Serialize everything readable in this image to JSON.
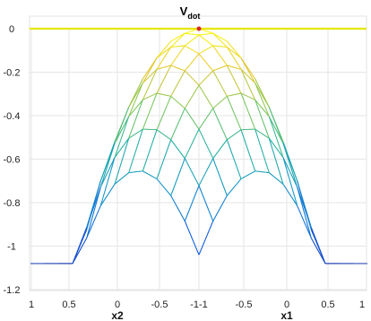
{
  "chart_data": {
    "type": "surface",
    "title_main": "V",
    "title_sub": "dot",
    "zlim": [
      -1.2,
      0
    ],
    "zticks": [
      "0",
      "-0.2",
      "-0.4",
      "-0.6",
      "-0.8",
      "-1",
      "-1.2"
    ],
    "x2_ticks": [
      "1",
      "0.5",
      "0",
      "-0.5",
      "-1"
    ],
    "x1_ticks": [
      "-1",
      "-0.5",
      "0",
      "0.5",
      "1"
    ],
    "x2_label": "x2",
    "x1_label": "x1",
    "corner_label": "-1-1",
    "surface": {
      "x1_range": [
        -1,
        1
      ],
      "x2_range": [
        -1,
        1
      ],
      "grid_size": 13,
      "z_at_origin": 0,
      "z_corners": {
        "x1=1,x2=1": -0.3,
        "x1=-1,x2=1": -1.05,
        "x1=1,x2=-1": -0.97,
        "x1=-1,x2=-1": -0.3
      },
      "colormap": "parula"
    },
    "plane": {
      "z": 0,
      "color": "#e6e600"
    },
    "marker": {
      "x1": 0,
      "x2": 0,
      "z": 0,
      "color": "#d62728"
    },
    "grid": true
  }
}
